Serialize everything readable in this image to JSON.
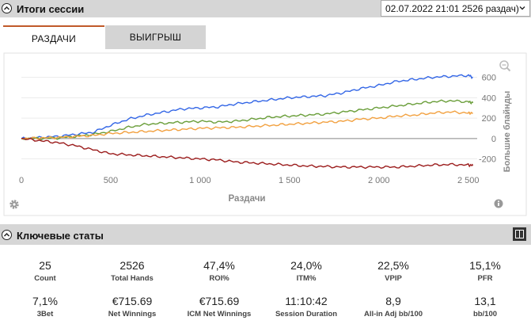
{
  "session_header": {
    "title": "Итоги сессии",
    "session_select_value": "02.07.2022 21:01 2526 раздач)"
  },
  "tabs": [
    {
      "label": "РАЗДАЧИ",
      "active": true
    },
    {
      "label": "ВЫИГРЫШ",
      "active": false
    }
  ],
  "chart_data": {
    "type": "line",
    "xlabel": "Раздачи",
    "ylabel": "Большие блайнды",
    "xlim": [
      0,
      2550
    ],
    "ylim": [
      -320,
      690
    ],
    "x_ticks": [
      "0",
      "500",
      "1 000",
      "1 500",
      "2 000",
      "2 500"
    ],
    "x_tick_values": [
      0,
      500,
      1000,
      1500,
      2000,
      2500
    ],
    "y_ticks": [
      "600",
      "400",
      "200",
      "0",
      "-200"
    ],
    "y_tick_values": [
      600,
      400,
      200,
      0,
      -200
    ],
    "series": [
      {
        "color": "#3366e6",
        "x": [
          0,
          100,
          200,
          300,
          400,
          500,
          600,
          700,
          800,
          900,
          1000,
          1100,
          1200,
          1300,
          1400,
          1500,
          1600,
          1700,
          1800,
          1900,
          2000,
          2100,
          2200,
          2300,
          2400,
          2500,
          2526
        ],
        "y": [
          0,
          10,
          20,
          40,
          60,
          130,
          190,
          230,
          260,
          290,
          300,
          310,
          340,
          360,
          380,
          400,
          410,
          420,
          450,
          490,
          520,
          560,
          580,
          600,
          610,
          620,
          600
        ]
      },
      {
        "color": "#6a9e3a",
        "x": [
          0,
          100,
          200,
          300,
          400,
          500,
          600,
          700,
          800,
          900,
          1000,
          1100,
          1200,
          1300,
          1400,
          1500,
          1600,
          1700,
          1800,
          1900,
          2000,
          2100,
          2200,
          2300,
          2400,
          2500,
          2526
        ],
        "y": [
          0,
          0,
          5,
          20,
          40,
          70,
          110,
          140,
          150,
          160,
          170,
          160,
          170,
          190,
          210,
          220,
          230,
          240,
          260,
          280,
          300,
          320,
          340,
          360,
          370,
          360,
          350
        ]
      },
      {
        "color": "#f2a140",
        "x": [
          0,
          100,
          200,
          300,
          400,
          500,
          600,
          700,
          800,
          900,
          1000,
          1100,
          1200,
          1300,
          1400,
          1500,
          1600,
          1700,
          1800,
          1900,
          2000,
          2100,
          2200,
          2300,
          2400,
          2500,
          2526
        ],
        "y": [
          0,
          5,
          10,
          20,
          30,
          50,
          60,
          70,
          80,
          90,
          100,
          105,
          110,
          120,
          130,
          140,
          150,
          160,
          170,
          190,
          200,
          220,
          230,
          250,
          260,
          250,
          250
        ]
      },
      {
        "color": "#9b1c1c",
        "x": [
          0,
          100,
          200,
          300,
          400,
          500,
          600,
          700,
          800,
          900,
          1000,
          1100,
          1200,
          1300,
          1400,
          1500,
          1600,
          1700,
          1800,
          1900,
          2000,
          2100,
          2200,
          2300,
          2400,
          2500,
          2526
        ],
        "y": [
          0,
          -20,
          -40,
          -70,
          -110,
          -150,
          -160,
          -170,
          -180,
          -190,
          -200,
          -210,
          -230,
          -240,
          -250,
          -260,
          -270,
          -275,
          -280,
          -280,
          -280,
          -280,
          -270,
          -260,
          -255,
          -260,
          -265
        ]
      }
    ]
  },
  "key_stats_header": {
    "title": "Ключевые статы"
  },
  "stats": [
    {
      "value": "25",
      "label": "Count"
    },
    {
      "value": "2526",
      "label": "Total Hands"
    },
    {
      "value": "47,4%",
      "label": "ROI%"
    },
    {
      "value": "24,0%",
      "label": "ITM%"
    },
    {
      "value": "22,5%",
      "label": "VPIP"
    },
    {
      "value": "15,1%",
      "label": "PFR"
    },
    {
      "value": "7,1%",
      "label": "3Bet"
    },
    {
      "value": "€715.69",
      "label": "Net Winnings"
    },
    {
      "value": "€715.69",
      "label": "ICM Net Winnings"
    },
    {
      "value": "11:10:42",
      "label": "Session Duration"
    },
    {
      "value": "8,9",
      "label": "All-in Adj bb/100"
    },
    {
      "value": "13,1",
      "label": "bb/100"
    }
  ],
  "icons": {
    "collapse": "chevron-up-icon",
    "dropdown": "chevron-down-icon",
    "zoom": "zoom-out-icon",
    "settings": "gear-icon",
    "info": "info-icon",
    "panel": "panel-toggle-icon"
  }
}
